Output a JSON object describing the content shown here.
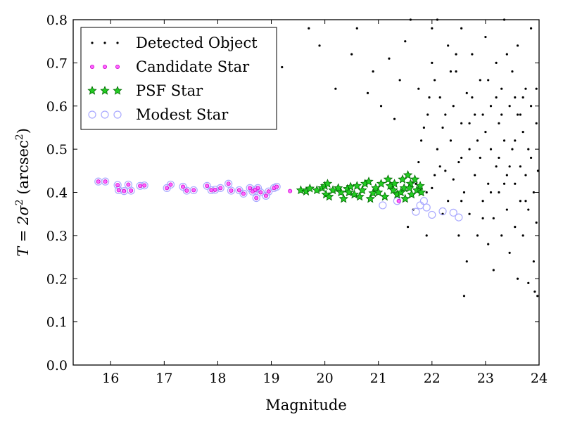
{
  "colors": {
    "detected": "#000000",
    "candidate_fill": "#ff66ff",
    "candidate_edge": "#cc00cc",
    "psf_fill": "#22cc22",
    "psf_edge": "#006600",
    "modest_edge": "#aaaaff",
    "axes": "#000000",
    "background": "#ffffff"
  },
  "chart_data": {
    "type": "scatter",
    "xlabel": "Magnitude",
    "ylabel_prefix": "T = 2σ",
    "ylabel_sup": "2",
    "ylabel_unit_open": " (arcsec",
    "ylabel_unit_sup": "2",
    "ylabel_unit_close": ")",
    "xlim": [
      15.3,
      24
    ],
    "ylim": [
      0,
      0.8
    ],
    "xticks": [
      16,
      17,
      18,
      19,
      20,
      21,
      22,
      23,
      24
    ],
    "xticklabels": [
      "16",
      "17",
      "18",
      "19",
      "20",
      "21",
      "22",
      "23",
      "24"
    ],
    "yticks": [
      0.0,
      0.1,
      0.2,
      0.3,
      0.4,
      0.5,
      0.6,
      0.7,
      0.8
    ],
    "yticklabels": [
      "0.0",
      "0.1",
      "0.2",
      "0.3",
      "0.4",
      "0.5",
      "0.6",
      "0.7",
      "0.8"
    ],
    "grid": false,
    "legend_position": "top-left",
    "series": [
      {
        "name": "Detected Object",
        "marker": "dot",
        "description_note": "dense field of faint objects; representative points",
        "points": [
          [
            21.55,
            0.32
          ],
          [
            21.65,
            0.36
          ],
          [
            21.7,
            0.42
          ],
          [
            21.75,
            0.47
          ],
          [
            21.8,
            0.52
          ],
          [
            21.85,
            0.55
          ],
          [
            21.9,
            0.4
          ],
          [
            21.92,
            0.58
          ],
          [
            21.95,
            0.62
          ],
          [
            22.0,
            0.41
          ],
          [
            22.0,
            0.7
          ],
          [
            22.05,
            0.44
          ],
          [
            22.1,
            0.5
          ],
          [
            22.1,
            0.8
          ],
          [
            22.15,
            0.62
          ],
          [
            22.2,
            0.55
          ],
          [
            22.2,
            0.35
          ],
          [
            22.25,
            0.45
          ],
          [
            22.3,
            0.74
          ],
          [
            22.3,
            0.38
          ],
          [
            22.35,
            0.52
          ],
          [
            22.4,
            0.6
          ],
          [
            22.4,
            0.43
          ],
          [
            22.45,
            0.68
          ],
          [
            22.5,
            0.47
          ],
          [
            22.5,
            0.3
          ],
          [
            22.55,
            0.56
          ],
          [
            22.55,
            0.78
          ],
          [
            22.6,
            0.16
          ],
          [
            22.6,
            0.4
          ],
          [
            22.65,
            0.63
          ],
          [
            22.7,
            0.5
          ],
          [
            22.7,
            0.35
          ],
          [
            22.75,
            0.72
          ],
          [
            22.8,
            0.44
          ],
          [
            22.8,
            0.58
          ],
          [
            22.85,
            0.3
          ],
          [
            22.9,
            0.66
          ],
          [
            22.9,
            0.48
          ],
          [
            22.95,
            0.38
          ],
          [
            23.0,
            0.54
          ],
          [
            23.0,
            0.76
          ],
          [
            23.05,
            0.42
          ],
          [
            23.05,
            0.28
          ],
          [
            23.1,
            0.6
          ],
          [
            23.1,
            0.5
          ],
          [
            23.15,
            0.34
          ],
          [
            23.2,
            0.7
          ],
          [
            23.2,
            0.46
          ],
          [
            23.25,
            0.56
          ],
          [
            23.25,
            0.4
          ],
          [
            23.3,
            0.64
          ],
          [
            23.3,
            0.3
          ],
          [
            23.35,
            0.52
          ],
          [
            23.35,
            0.8
          ],
          [
            23.4,
            0.44
          ],
          [
            23.4,
            0.36
          ],
          [
            23.45,
            0.6
          ],
          [
            23.45,
            0.26
          ],
          [
            23.5,
            0.5
          ],
          [
            23.5,
            0.68
          ],
          [
            23.55,
            0.42
          ],
          [
            23.55,
            0.32
          ],
          [
            23.6,
            0.58
          ],
          [
            23.6,
            0.74
          ],
          [
            23.65,
            0.46
          ],
          [
            23.65,
            0.38
          ],
          [
            23.7,
            0.54
          ],
          [
            23.7,
            0.3
          ],
          [
            23.75,
            0.64
          ],
          [
            23.75,
            0.44
          ],
          [
            23.8,
            0.5
          ],
          [
            23.8,
            0.36
          ],
          [
            23.85,
            0.6
          ],
          [
            23.85,
            0.78
          ],
          [
            23.9,
            0.4
          ],
          [
            23.9,
            0.24
          ],
          [
            23.92,
            0.17
          ],
          [
            23.95,
            0.56
          ],
          [
            23.95,
            0.33
          ],
          [
            23.97,
            0.16
          ],
          [
            23.98,
            0.45
          ],
          [
            21.9,
            0.3
          ],
          [
            22.05,
            0.66
          ],
          [
            22.45,
            0.72
          ],
          [
            22.65,
            0.24
          ],
          [
            23.15,
            0.22
          ],
          [
            23.6,
            0.2
          ],
          [
            23.8,
            0.19
          ],
          [
            23.2,
            0.62
          ],
          [
            20.8,
            0.63
          ],
          [
            21.05,
            0.6
          ],
          [
            21.3,
            0.57
          ],
          [
            20.2,
            0.64
          ],
          [
            20.5,
            0.72
          ],
          [
            20.9,
            0.68
          ],
          [
            21.2,
            0.71
          ],
          [
            21.5,
            0.75
          ],
          [
            19.2,
            0.69
          ],
          [
            19.9,
            0.74
          ],
          [
            21.6,
            0.8
          ],
          [
            21.4,
            0.66
          ],
          [
            22.0,
            0.78
          ],
          [
            20.6,
            0.78
          ],
          [
            19.7,
            0.78
          ],
          [
            22.35,
            0.68
          ],
          [
            22.75,
            0.62
          ],
          [
            23.05,
            0.66
          ],
          [
            23.4,
            0.72
          ],
          [
            23.7,
            0.62
          ],
          [
            22.55,
            0.48
          ],
          [
            22.95,
            0.58
          ],
          [
            23.25,
            0.48
          ],
          [
            23.55,
            0.52
          ],
          [
            23.85,
            0.48
          ],
          [
            22.25,
            0.58
          ],
          [
            22.85,
            0.52
          ],
          [
            23.45,
            0.46
          ],
          [
            23.65,
            0.58
          ],
          [
            23.95,
            0.64
          ],
          [
            21.75,
            0.64
          ],
          [
            22.15,
            0.46
          ],
          [
            22.55,
            0.38
          ],
          [
            22.95,
            0.34
          ],
          [
            23.35,
            0.42
          ],
          [
            23.75,
            0.38
          ],
          [
            23.55,
            0.62
          ],
          [
            23.3,
            0.58
          ],
          [
            23.1,
            0.4
          ],
          [
            22.7,
            0.56
          ]
        ]
      },
      {
        "name": "Candidate Star",
        "marker": "small-circle",
        "points": [
          [
            15.77,
            0.425
          ],
          [
            15.9,
            0.425
          ],
          [
            16.13,
            0.417
          ],
          [
            16.15,
            0.405
          ],
          [
            16.25,
            0.403
          ],
          [
            16.33,
            0.418
          ],
          [
            16.38,
            0.404
          ],
          [
            16.55,
            0.415
          ],
          [
            16.63,
            0.416
          ],
          [
            17.05,
            0.41
          ],
          [
            17.12,
            0.418
          ],
          [
            17.35,
            0.413
          ],
          [
            17.42,
            0.404
          ],
          [
            17.55,
            0.405
          ],
          [
            17.8,
            0.415
          ],
          [
            17.88,
            0.405
          ],
          [
            17.95,
            0.406
          ],
          [
            18.05,
            0.41
          ],
          [
            18.2,
            0.42
          ],
          [
            18.25,
            0.404
          ],
          [
            18.4,
            0.405
          ],
          [
            18.48,
            0.397
          ],
          [
            18.6,
            0.41
          ],
          [
            18.65,
            0.402
          ],
          [
            18.7,
            0.406
          ],
          [
            18.72,
            0.387
          ],
          [
            18.75,
            0.41
          ],
          [
            18.8,
            0.4
          ],
          [
            18.9,
            0.392
          ],
          [
            18.95,
            0.402
          ],
          [
            19.05,
            0.41
          ],
          [
            19.1,
            0.413
          ],
          [
            19.35,
            0.403
          ],
          [
            21.38,
            0.38
          ]
        ]
      },
      {
        "name": "PSF Star",
        "marker": "star",
        "points": [
          [
            19.55,
            0.405
          ],
          [
            19.65,
            0.402
          ],
          [
            19.72,
            0.409
          ],
          [
            19.85,
            0.405
          ],
          [
            19.95,
            0.41
          ],
          [
            20.0,
            0.415
          ],
          [
            20.02,
            0.395
          ],
          [
            20.05,
            0.42
          ],
          [
            20.08,
            0.39
          ],
          [
            20.15,
            0.405
          ],
          [
            20.3,
            0.4
          ],
          [
            20.35,
            0.385
          ],
          [
            20.42,
            0.408
          ],
          [
            20.48,
            0.413
          ],
          [
            20.55,
            0.395
          ],
          [
            20.6,
            0.415
          ],
          [
            20.7,
            0.405
          ],
          [
            20.75,
            0.42
          ],
          [
            20.82,
            0.425
          ],
          [
            20.85,
            0.385
          ],
          [
            20.9,
            0.398
          ],
          [
            20.95,
            0.41
          ],
          [
            21.05,
            0.42
          ],
          [
            21.12,
            0.39
          ],
          [
            21.18,
            0.43
          ],
          [
            21.22,
            0.415
          ],
          [
            21.28,
            0.405
          ],
          [
            21.35,
            0.395
          ],
          [
            21.42,
            0.4
          ],
          [
            21.48,
            0.41
          ],
          [
            21.5,
            0.385
          ],
          [
            21.55,
            0.44
          ],
          [
            21.6,
            0.42
          ],
          [
            21.62,
            0.395
          ],
          [
            21.68,
            0.43
          ],
          [
            21.72,
            0.405
          ],
          [
            21.78,
            0.415
          ],
          [
            21.8,
            0.4
          ],
          [
            20.25,
            0.41
          ],
          [
            20.65,
            0.39
          ],
          [
            21.0,
            0.4
          ],
          [
            21.3,
            0.42
          ],
          [
            21.45,
            0.43
          ],
          [
            21.58,
            0.41
          ],
          [
            20.45,
            0.4
          ]
        ]
      },
      {
        "name": "Modest Star",
        "marker": "circle-open",
        "points": [
          [
            15.77,
            0.425
          ],
          [
            15.9,
            0.425
          ],
          [
            16.13,
            0.417
          ],
          [
            16.15,
            0.405
          ],
          [
            16.25,
            0.403
          ],
          [
            16.33,
            0.418
          ],
          [
            16.38,
            0.404
          ],
          [
            16.55,
            0.415
          ],
          [
            16.63,
            0.416
          ],
          [
            17.05,
            0.41
          ],
          [
            17.12,
            0.418
          ],
          [
            17.35,
            0.413
          ],
          [
            17.42,
            0.404
          ],
          [
            17.55,
            0.405
          ],
          [
            17.8,
            0.415
          ],
          [
            17.88,
            0.405
          ],
          [
            17.95,
            0.406
          ],
          [
            18.05,
            0.41
          ],
          [
            18.2,
            0.42
          ],
          [
            18.25,
            0.404
          ],
          [
            18.4,
            0.405
          ],
          [
            18.48,
            0.397
          ],
          [
            18.6,
            0.41
          ],
          [
            18.65,
            0.402
          ],
          [
            18.7,
            0.406
          ],
          [
            18.72,
            0.387
          ],
          [
            18.75,
            0.41
          ],
          [
            18.8,
            0.4
          ],
          [
            18.9,
            0.392
          ],
          [
            18.95,
            0.402
          ],
          [
            19.05,
            0.41
          ],
          [
            19.1,
            0.413
          ],
          [
            21.08,
            0.37
          ],
          [
            21.35,
            0.38
          ],
          [
            21.7,
            0.355
          ],
          [
            21.78,
            0.37
          ],
          [
            21.85,
            0.38
          ],
          [
            21.9,
            0.365
          ],
          [
            22.0,
            0.348
          ],
          [
            22.2,
            0.356
          ],
          [
            22.4,
            0.353
          ],
          [
            22.5,
            0.342
          ]
        ]
      }
    ]
  }
}
